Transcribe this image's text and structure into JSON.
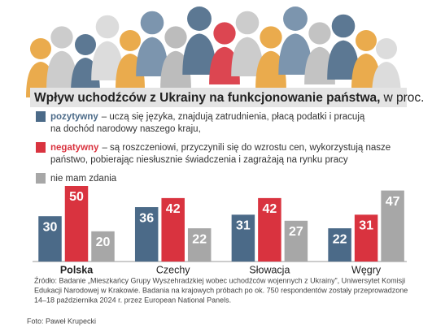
{
  "chart_data": {
    "type": "bar",
    "title": "Wpływ uchodźców z Ukrainy na funkcjonowanie państwa,",
    "unit": "w proc.",
    "categories": [
      "Polska",
      "Czechy",
      "Słowacja",
      "Węgry"
    ],
    "highlight_index": 0,
    "series": [
      {
        "name": "pozytywny",
        "color": "#4b6a88",
        "description": [
          "– uczą się języka, znajdują zatrudnienia, płacą podatki i pracują",
          "na dochód narodowy naszego kraju,"
        ],
        "values": [
          30,
          36,
          31,
          22
        ]
      },
      {
        "name": "negatywny",
        "color": "#d9333f",
        "description": [
          "– są roszczeniowi, przyczynili się do wzrostu cen, wykorzystują nasze",
          "państwo, pobierając niesłusznie świadczenia i zagrażają na rynku pracy"
        ],
        "values": [
          50,
          42,
          42,
          31
        ]
      },
      {
        "name": "nie mam zdania",
        "color": "#a7a7a7",
        "description": [],
        "values": [
          20,
          22,
          27,
          47
        ]
      }
    ],
    "source": [
      "Źródło: Badanie „Mieszkańcy Grupy Wyszehradzkiej wobec uchodźców wojennych z Ukrainy”, Uniwersytet Komisji",
      "Edukacji Narodowej w Krakowie. Badania na krajowych próbach po ok. 750 respondentów zostały przeprowadzone",
      "14–18 października 2024 r. przez European National Panels."
    ],
    "credit": "Foto: Paweł Krupecki"
  }
}
